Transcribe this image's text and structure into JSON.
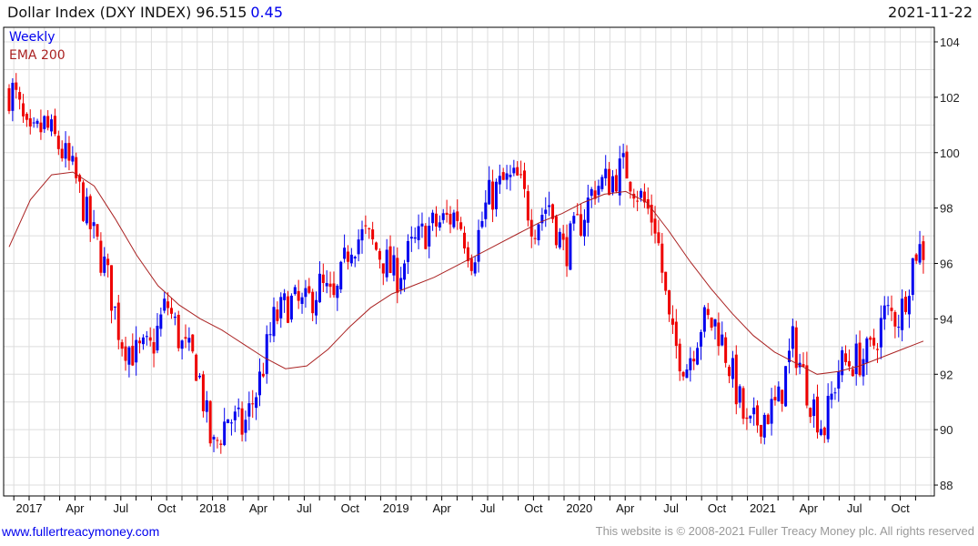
{
  "header": {
    "title": "Dollar Index (DXY INDEX) 96.515",
    "change": "0.45",
    "date": "2021-11-22"
  },
  "footer": {
    "site": "www.fullertreacymoney.com",
    "copyright": "This website is © 2008-2021 Fuller Treacy Money plc. All rights reserved"
  },
  "colors": {
    "up": "#0000ee",
    "down": "#ee0000",
    "ema": "#aa2222",
    "grid": "#dddddd"
  },
  "chart_data": {
    "type": "candlestick",
    "title": "Dollar Index (DXY INDEX)",
    "legend": [
      "Weekly",
      "EMA 200"
    ],
    "legend_position": "top-left",
    "ylim": [
      87.5,
      104.5
    ],
    "yticks": [
      88,
      90,
      92,
      94,
      96,
      98,
      100,
      102,
      104
    ],
    "xticks": [
      {
        "label": "2017",
        "m": 0
      },
      {
        "label": "Apr",
        "m": 3
      },
      {
        "label": "Jul",
        "m": 6
      },
      {
        "label": "Oct",
        "m": 9
      },
      {
        "label": "2018",
        "m": 12
      },
      {
        "label": "Apr",
        "m": 15
      },
      {
        "label": "Jul",
        "m": 18
      },
      {
        "label": "Oct",
        "m": 21
      },
      {
        "label": "2019",
        "m": 24
      },
      {
        "label": "Apr",
        "m": 27
      },
      {
        "label": "Jul",
        "m": 30
      },
      {
        "label": "Oct",
        "m": 33
      },
      {
        "label": "2020",
        "m": 36
      },
      {
        "label": "Apr",
        "m": 39
      },
      {
        "label": "Jul",
        "m": 42
      },
      {
        "label": "Oct",
        "m": 45
      },
      {
        "label": "2021",
        "m": 48
      },
      {
        "label": "Apr",
        "m": 51
      },
      {
        "label": "Jul",
        "m": 54
      },
      {
        "label": "Oct",
        "m": 57
      }
    ],
    "monthly_close_start": "2016-12",
    "monthly_close": [
      102.2,
      100.3,
      101.0,
      100.2,
      99.1,
      97.3,
      95.8,
      93.3,
      92.7,
      92.9,
      94.6,
      93.0,
      92.3,
      89.2,
      90.5,
      90.0,
      91.6,
      93.9,
      94.6,
      94.4,
      95.2,
      94.5,
      96.8,
      97.0,
      96.3,
      95.5,
      96.5,
      97.2,
      97.5,
      97.8,
      96.2,
      98.3,
      98.9,
      99.0,
      97.4,
      98.2,
      96.4,
      97.4,
      98.8,
      99.0,
      99.5,
      98.4,
      97.4,
      93.3,
      92.3,
      93.9,
      93.8,
      92.0,
      89.9,
      90.5,
      90.9,
      93.2,
      91.3,
      90.0,
      92.3,
      92.5,
      92.7,
      94.2,
      94.1,
      96.5
    ],
    "ema200_monthly": [
      96.6,
      98.3,
      99.2,
      99.3,
      98.8,
      97.6,
      96.3,
      95.2,
      94.5,
      94.0,
      93.6,
      93.1,
      92.6,
      92.2,
      92.3,
      92.9,
      93.7,
      94.4,
      94.9,
      95.2,
      95.5,
      95.9,
      96.3,
      96.7,
      97.1,
      97.5,
      97.8,
      98.2,
      98.5,
      98.6,
      98.2,
      97.2,
      96.1,
      95.1,
      94.2,
      93.4,
      92.8,
      92.4,
      92.0,
      92.1,
      92.3,
      92.6,
      92.9,
      93.2
    ]
  }
}
